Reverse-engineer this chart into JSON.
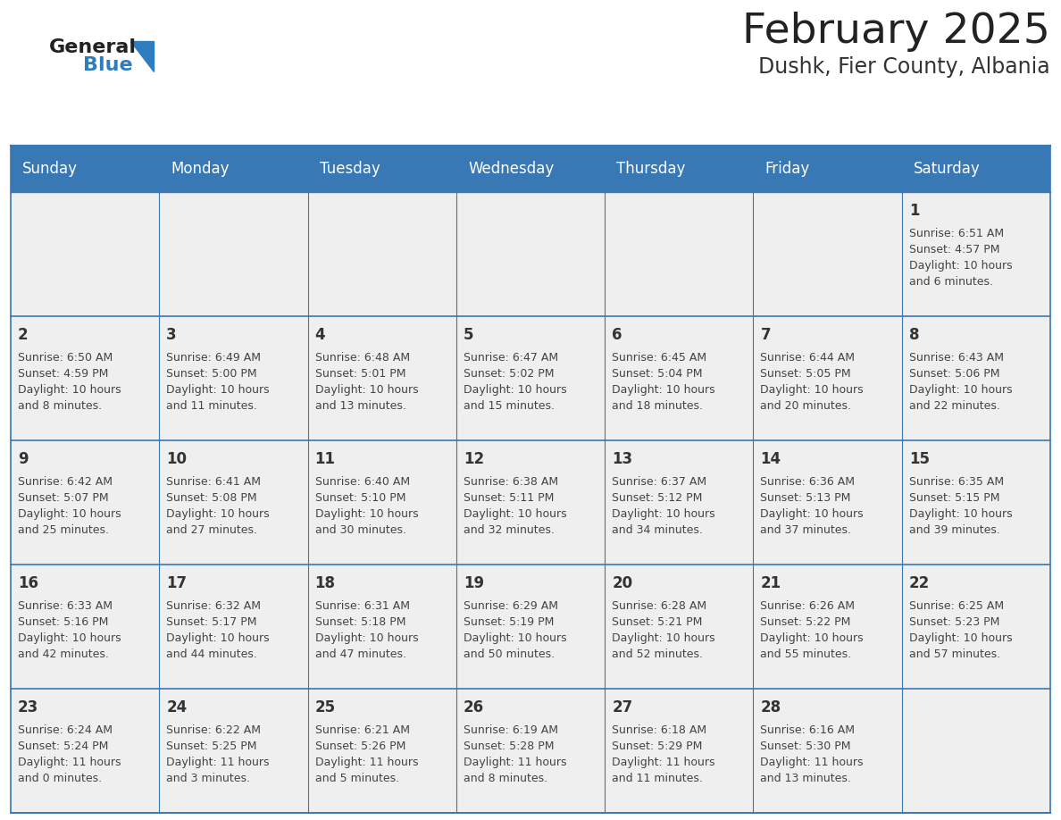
{
  "title": "February 2025",
  "subtitle": "Dushk, Fier County, Albania",
  "days_of_week": [
    "Sunday",
    "Monday",
    "Tuesday",
    "Wednesday",
    "Thursday",
    "Friday",
    "Saturday"
  ],
  "header_bg": "#3878b4",
  "header_text": "#ffffff",
  "cell_bg_light": "#efefef",
  "cell_bg_white": "#ffffff",
  "border_color": "#3878b4",
  "day_num_color": "#333333",
  "cell_text_color": "#444444",
  "title_color": "#222222",
  "subtitle_color": "#333333",
  "logo_general_color": "#222222",
  "logo_blue_color": "#2e7dc0",
  "weeks": [
    [
      {
        "day": null,
        "info": ""
      },
      {
        "day": null,
        "info": ""
      },
      {
        "day": null,
        "info": ""
      },
      {
        "day": null,
        "info": ""
      },
      {
        "day": null,
        "info": ""
      },
      {
        "day": null,
        "info": ""
      },
      {
        "day": 1,
        "info": "Sunrise: 6:51 AM\nSunset: 4:57 PM\nDaylight: 10 hours\nand 6 minutes."
      }
    ],
    [
      {
        "day": 2,
        "info": "Sunrise: 6:50 AM\nSunset: 4:59 PM\nDaylight: 10 hours\nand 8 minutes."
      },
      {
        "day": 3,
        "info": "Sunrise: 6:49 AM\nSunset: 5:00 PM\nDaylight: 10 hours\nand 11 minutes."
      },
      {
        "day": 4,
        "info": "Sunrise: 6:48 AM\nSunset: 5:01 PM\nDaylight: 10 hours\nand 13 minutes."
      },
      {
        "day": 5,
        "info": "Sunrise: 6:47 AM\nSunset: 5:02 PM\nDaylight: 10 hours\nand 15 minutes."
      },
      {
        "day": 6,
        "info": "Sunrise: 6:45 AM\nSunset: 5:04 PM\nDaylight: 10 hours\nand 18 minutes."
      },
      {
        "day": 7,
        "info": "Sunrise: 6:44 AM\nSunset: 5:05 PM\nDaylight: 10 hours\nand 20 minutes."
      },
      {
        "day": 8,
        "info": "Sunrise: 6:43 AM\nSunset: 5:06 PM\nDaylight: 10 hours\nand 22 minutes."
      }
    ],
    [
      {
        "day": 9,
        "info": "Sunrise: 6:42 AM\nSunset: 5:07 PM\nDaylight: 10 hours\nand 25 minutes."
      },
      {
        "day": 10,
        "info": "Sunrise: 6:41 AM\nSunset: 5:08 PM\nDaylight: 10 hours\nand 27 minutes."
      },
      {
        "day": 11,
        "info": "Sunrise: 6:40 AM\nSunset: 5:10 PM\nDaylight: 10 hours\nand 30 minutes."
      },
      {
        "day": 12,
        "info": "Sunrise: 6:38 AM\nSunset: 5:11 PM\nDaylight: 10 hours\nand 32 minutes."
      },
      {
        "day": 13,
        "info": "Sunrise: 6:37 AM\nSunset: 5:12 PM\nDaylight: 10 hours\nand 34 minutes."
      },
      {
        "day": 14,
        "info": "Sunrise: 6:36 AM\nSunset: 5:13 PM\nDaylight: 10 hours\nand 37 minutes."
      },
      {
        "day": 15,
        "info": "Sunrise: 6:35 AM\nSunset: 5:15 PM\nDaylight: 10 hours\nand 39 minutes."
      }
    ],
    [
      {
        "day": 16,
        "info": "Sunrise: 6:33 AM\nSunset: 5:16 PM\nDaylight: 10 hours\nand 42 minutes."
      },
      {
        "day": 17,
        "info": "Sunrise: 6:32 AM\nSunset: 5:17 PM\nDaylight: 10 hours\nand 44 minutes."
      },
      {
        "day": 18,
        "info": "Sunrise: 6:31 AM\nSunset: 5:18 PM\nDaylight: 10 hours\nand 47 minutes."
      },
      {
        "day": 19,
        "info": "Sunrise: 6:29 AM\nSunset: 5:19 PM\nDaylight: 10 hours\nand 50 minutes."
      },
      {
        "day": 20,
        "info": "Sunrise: 6:28 AM\nSunset: 5:21 PM\nDaylight: 10 hours\nand 52 minutes."
      },
      {
        "day": 21,
        "info": "Sunrise: 6:26 AM\nSunset: 5:22 PM\nDaylight: 10 hours\nand 55 minutes."
      },
      {
        "day": 22,
        "info": "Sunrise: 6:25 AM\nSunset: 5:23 PM\nDaylight: 10 hours\nand 57 minutes."
      }
    ],
    [
      {
        "day": 23,
        "info": "Sunrise: 6:24 AM\nSunset: 5:24 PM\nDaylight: 11 hours\nand 0 minutes."
      },
      {
        "day": 24,
        "info": "Sunrise: 6:22 AM\nSunset: 5:25 PM\nDaylight: 11 hours\nand 3 minutes."
      },
      {
        "day": 25,
        "info": "Sunrise: 6:21 AM\nSunset: 5:26 PM\nDaylight: 11 hours\nand 5 minutes."
      },
      {
        "day": 26,
        "info": "Sunrise: 6:19 AM\nSunset: 5:28 PM\nDaylight: 11 hours\nand 8 minutes."
      },
      {
        "day": 27,
        "info": "Sunrise: 6:18 AM\nSunset: 5:29 PM\nDaylight: 11 hours\nand 11 minutes."
      },
      {
        "day": 28,
        "info": "Sunrise: 6:16 AM\nSunset: 5:30 PM\nDaylight: 11 hours\nand 13 minutes."
      },
      {
        "day": null,
        "info": ""
      }
    ]
  ]
}
